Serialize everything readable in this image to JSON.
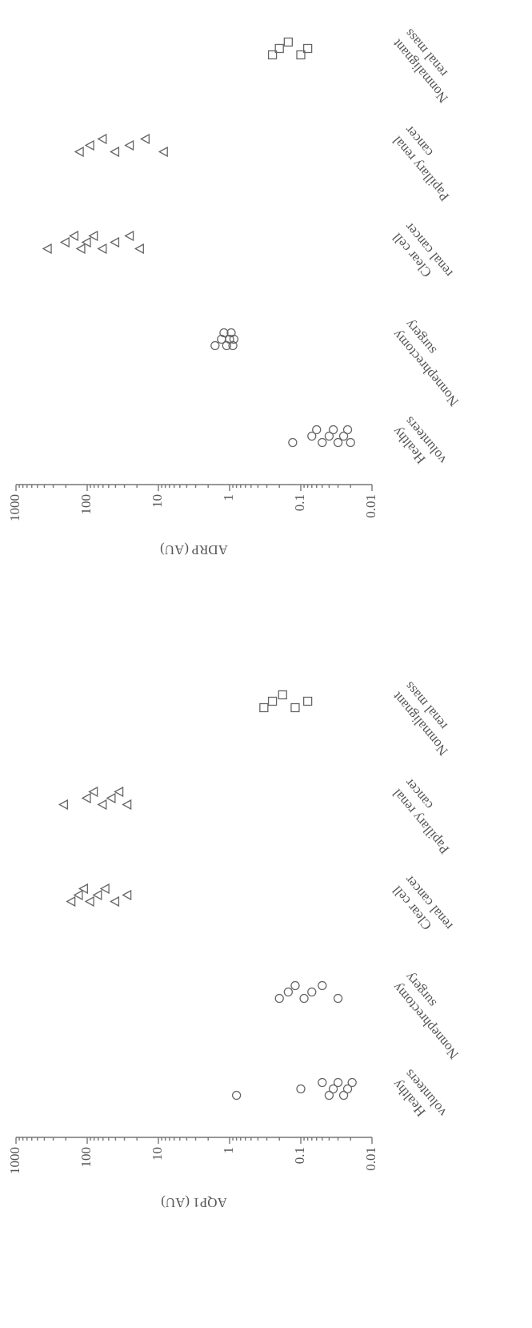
{
  "chart_data": [
    {
      "type": "scatter",
      "y_label": "ADRP (AU)",
      "log_y": true,
      "ylim": [
        0.01,
        1000
      ],
      "yticks": [
        0.01,
        0.1,
        1,
        10,
        100,
        1000
      ],
      "color": "#666",
      "categories": [
        [
          "Healthy",
          "volunteers"
        ],
        [
          "Nonnephrectomy",
          "surgery"
        ],
        [
          "Clear cell",
          "renal cancer"
        ],
        [
          "Papillary renal",
          "cancer"
        ],
        [
          "Nonmalignant",
          "renal mass"
        ]
      ],
      "markers": [
        "circle",
        "circle",
        "triangle",
        "triangle",
        "square"
      ],
      "points": [
        [
          0.13,
          0.07,
          0.06,
          0.05,
          0.04,
          0.035,
          0.03,
          0.025,
          0.022,
          0.02
        ],
        [
          1.6,
          1.3,
          1.2,
          1.1,
          1.0,
          0.95,
          0.9,
          0.87
        ],
        [
          355,
          200,
          150,
          120,
          100,
          80,
          60,
          40,
          25,
          18
        ],
        [
          126,
          90,
          60,
          40,
          25,
          15,
          8.3
        ],
        [
          0.25,
          0.2,
          0.15,
          0.1,
          0.08
        ]
      ]
    },
    {
      "type": "scatter",
      "y_label": "AQP1 (AU)",
      "log_y": true,
      "ylim": [
        0.01,
        1000
      ],
      "yticks": [
        0.01,
        0.1,
        1,
        10,
        100,
        1000
      ],
      "color": "#666",
      "categories": [
        [
          "Healthy",
          "volunteers"
        ],
        [
          "Nonnephrectomy",
          "surgery"
        ],
        [
          "Clear cell",
          "renal cancer"
        ],
        [
          "Papillary renal",
          "cancer"
        ],
        [
          "Nonmalignant",
          "renal mass"
        ]
      ],
      "markers": [
        "circle",
        "circle",
        "triangle",
        "triangle",
        "square"
      ],
      "points": [
        [
          0.8,
          0.1,
          0.05,
          0.04,
          0.035,
          0.03,
          0.025,
          0.022,
          0.019
        ],
        [
          0.2,
          0.15,
          0.12,
          0.09,
          0.07,
          0.05,
          0.03
        ],
        [
          165,
          130,
          110,
          90,
          70,
          55,
          40,
          27
        ],
        [
          210,
          100,
          80,
          60,
          45,
          35,
          27
        ],
        [
          0.33,
          0.25,
          0.18,
          0.12,
          0.08
        ]
      ]
    }
  ]
}
